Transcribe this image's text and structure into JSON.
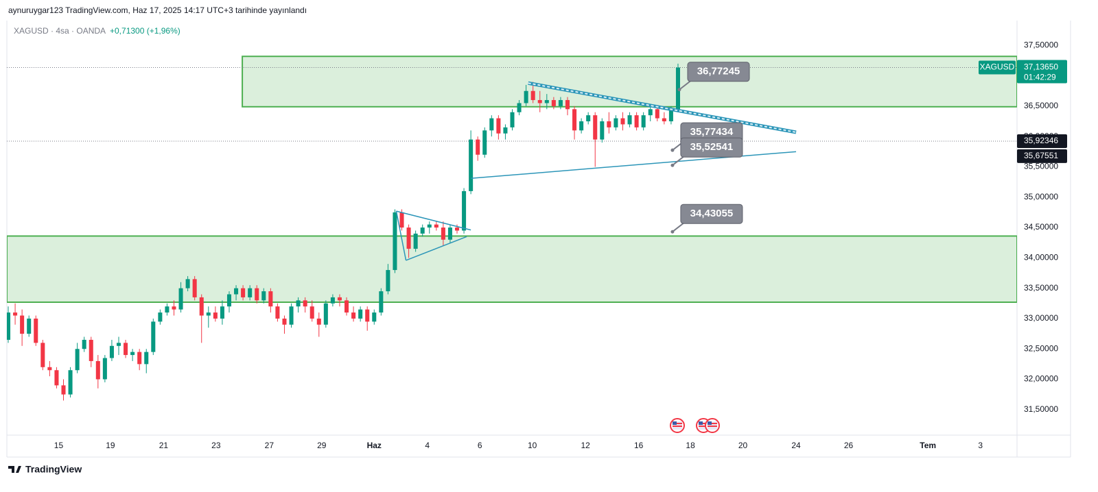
{
  "header": {
    "published": "aynuruygar123 TradingView.com, Haz 17, 2025 14:17 UTC+3 tarihinde yayınlandı",
    "symbol": "XAGUSD · 4sa · OANDA",
    "change": "+0,71300 (+1,96%)"
  },
  "footer": {
    "brand": "TradingView"
  },
  "chart_data": {
    "type": "candlestick",
    "up_color": "#089981",
    "down_color": "#f23645",
    "zone_color": "#4caf50",
    "line_color": "#2b95b8",
    "ylim": [
      31.08,
      37.91
    ],
    "xlim": [
      -0.2,
      146.1
    ],
    "yticks": [
      {
        "value": 31.5,
        "label": "31,50000"
      },
      {
        "value": 32,
        "label": "32,00000"
      },
      {
        "value": 32.5,
        "label": "32,50000"
      },
      {
        "value": 33,
        "label": "33,00000"
      },
      {
        "value": 33.5,
        "label": "33,50000"
      },
      {
        "value": 34,
        "label": "34,00000"
      },
      {
        "value": 34.5,
        "label": "34,50000"
      },
      {
        "value": 35,
        "label": "35,00000"
      },
      {
        "value": 35.5,
        "label": "35,50000"
      },
      {
        "value": 36,
        "label": "36,00000"
      },
      {
        "value": 36.5,
        "label": "36,50000"
      },
      {
        "value": 37,
        "label": "37,00000"
      },
      {
        "value": 37.5,
        "label": "37,50000"
      }
    ],
    "xticks": [
      {
        "value": 7.3,
        "label": "15"
      },
      {
        "value": 14.8,
        "label": "19"
      },
      {
        "value": 22.5,
        "label": "21"
      },
      {
        "value": 30.1,
        "label": "23"
      },
      {
        "value": 37.8,
        "label": "27"
      },
      {
        "value": 45.4,
        "label": "29"
      },
      {
        "value": 53.0,
        "label": "Haz"
      },
      {
        "value": 60.7,
        "label": "4"
      },
      {
        "value": 68.3,
        "label": "6"
      },
      {
        "value": 75.9,
        "label": "10"
      },
      {
        "value": 83.6,
        "label": "12"
      },
      {
        "value": 91.3,
        "label": "16"
      },
      {
        "value": 98.8,
        "label": "18"
      },
      {
        "value": 106.4,
        "label": "20"
      },
      {
        "value": 114.1,
        "label": "24"
      },
      {
        "value": 121.7,
        "label": "26"
      },
      {
        "value": 133.2,
        "label": "Tem"
      },
      {
        "value": 140.8,
        "label": "3"
      }
    ],
    "candles": [
      [
        32.65,
        33.2,
        32.6,
        33.1
      ],
      [
        33.1,
        33.25,
        32.9,
        33.05
      ],
      [
        33.05,
        33.15,
        32.55,
        32.75
      ],
      [
        32.75,
        33.05,
        32.7,
        33.0
      ],
      [
        33.0,
        33.05,
        32.55,
        32.6
      ],
      [
        32.6,
        32.65,
        32.15,
        32.2
      ],
      [
        32.2,
        32.3,
        32.05,
        32.15
      ],
      [
        32.15,
        32.2,
        31.85,
        31.9
      ],
      [
        31.9,
        32.0,
        31.65,
        31.75
      ],
      [
        31.75,
        32.2,
        31.7,
        32.15
      ],
      [
        32.15,
        32.6,
        32.1,
        32.5
      ],
      [
        32.5,
        32.7,
        32.45,
        32.65
      ],
      [
        32.65,
        32.7,
        32.2,
        32.3
      ],
      [
        32.3,
        32.4,
        31.85,
        32.0
      ],
      [
        32.0,
        32.4,
        31.95,
        32.35
      ],
      [
        32.35,
        32.65,
        32.3,
        32.55
      ],
      [
        32.55,
        32.7,
        32.4,
        32.6
      ],
      [
        32.6,
        32.65,
        32.35,
        32.4
      ],
      [
        32.4,
        32.5,
        32.3,
        32.45
      ],
      [
        32.45,
        32.5,
        32.15,
        32.25
      ],
      [
        32.25,
        32.5,
        32.1,
        32.45
      ],
      [
        32.45,
        33.0,
        32.4,
        32.95
      ],
      [
        32.95,
        33.15,
        32.9,
        33.1
      ],
      [
        33.1,
        33.25,
        33.05,
        33.2
      ],
      [
        33.2,
        33.3,
        33.05,
        33.15
      ],
      [
        33.15,
        33.6,
        33.1,
        33.5
      ],
      [
        33.5,
        33.7,
        33.45,
        33.65
      ],
      [
        33.65,
        33.7,
        33.3,
        33.35
      ],
      [
        33.35,
        33.4,
        32.6,
        33.05
      ],
      [
        33.05,
        33.2,
        32.85,
        33.1
      ],
      [
        33.1,
        33.2,
        32.95,
        33.0
      ],
      [
        33.0,
        33.3,
        32.9,
        33.2
      ],
      [
        33.2,
        33.45,
        33.1,
        33.4
      ],
      [
        33.4,
        33.55,
        33.3,
        33.5
      ],
      [
        33.5,
        33.55,
        33.3,
        33.35
      ],
      [
        33.35,
        33.55,
        33.3,
        33.5
      ],
      [
        33.5,
        33.55,
        33.25,
        33.3
      ],
      [
        33.3,
        33.5,
        33.25,
        33.45
      ],
      [
        33.45,
        33.5,
        33.1,
        33.2
      ],
      [
        33.2,
        33.25,
        32.95,
        33.0
      ],
      [
        33.0,
        33.05,
        32.75,
        32.9
      ],
      [
        32.9,
        33.25,
        32.85,
        33.2
      ],
      [
        33.2,
        33.35,
        33.1,
        33.3
      ],
      [
        33.3,
        33.35,
        33.1,
        33.2
      ],
      [
        33.2,
        33.3,
        32.95,
        33.0
      ],
      [
        33.0,
        33.1,
        32.7,
        32.9
      ],
      [
        32.9,
        33.3,
        32.85,
        33.25
      ],
      [
        33.25,
        33.4,
        33.2,
        33.35
      ],
      [
        33.35,
        33.4,
        33.2,
        33.3
      ],
      [
        33.3,
        33.35,
        33.05,
        33.1
      ],
      [
        33.1,
        33.2,
        32.95,
        33.0
      ],
      [
        33.0,
        33.2,
        32.95,
        33.15
      ],
      [
        33.15,
        33.2,
        32.8,
        32.95
      ],
      [
        32.95,
        33.15,
        32.9,
        33.1
      ],
      [
        33.1,
        33.5,
        33.05,
        33.45
      ],
      [
        33.45,
        33.9,
        33.4,
        33.8
      ],
      [
        33.8,
        34.8,
        33.75,
        34.75
      ],
      [
        34.75,
        34.8,
        34.45,
        34.5
      ],
      [
        34.5,
        34.55,
        34.0,
        34.15
      ],
      [
        34.15,
        34.45,
        34.1,
        34.4
      ],
      [
        34.4,
        34.55,
        34.35,
        34.5
      ],
      [
        34.5,
        34.6,
        34.4,
        34.55
      ],
      [
        34.55,
        34.6,
        34.45,
        34.5
      ],
      [
        34.5,
        34.6,
        34.2,
        34.3
      ],
      [
        34.3,
        34.55,
        34.25,
        34.5
      ],
      [
        34.5,
        34.55,
        34.4,
        34.45
      ],
      [
        34.45,
        35.15,
        34.4,
        35.1
      ],
      [
        35.1,
        36.1,
        35.05,
        35.95
      ],
      [
        35.95,
        36.0,
        35.6,
        35.7
      ],
      [
        35.7,
        36.15,
        35.65,
        36.1
      ],
      [
        36.1,
        36.35,
        36.0,
        36.3
      ],
      [
        36.3,
        36.35,
        35.95,
        36.05
      ],
      [
        36.05,
        36.2,
        35.95,
        36.15
      ],
      [
        36.15,
        36.45,
        36.1,
        36.4
      ],
      [
        36.4,
        36.6,
        36.35,
        36.55
      ],
      [
        36.55,
        36.85,
        36.5,
        36.75
      ],
      [
        36.75,
        36.9,
        36.55,
        36.6
      ],
      [
        36.6,
        36.75,
        36.4,
        36.55
      ],
      [
        36.55,
        36.7,
        36.45,
        36.6
      ],
      [
        36.6,
        36.65,
        36.45,
        36.5
      ],
      [
        36.5,
        36.65,
        36.45,
        36.6
      ],
      [
        36.6,
        36.65,
        36.35,
        36.45
      ],
      [
        36.45,
        36.5,
        35.95,
        36.1
      ],
      [
        36.1,
        36.3,
        36.05,
        36.25
      ],
      [
        36.25,
        36.4,
        36.2,
        36.35
      ],
      [
        36.35,
        36.4,
        35.5,
        35.95
      ],
      [
        35.95,
        36.3,
        35.9,
        36.25
      ],
      [
        36.25,
        36.4,
        36.05,
        36.15
      ],
      [
        36.15,
        36.35,
        36.1,
        36.3
      ],
      [
        36.3,
        36.4,
        36.1,
        36.2
      ],
      [
        36.2,
        36.4,
        36.15,
        36.35
      ],
      [
        36.35,
        36.4,
        36.1,
        36.15
      ],
      [
        36.15,
        36.4,
        36.1,
        36.35
      ],
      [
        36.35,
        36.5,
        36.25,
        36.45
      ],
      [
        36.45,
        36.5,
        36.25,
        36.3
      ],
      [
        36.3,
        36.4,
        36.2,
        36.25
      ],
      [
        36.25,
        36.5,
        36.2,
        36.45
      ],
      [
        36.45,
        37.2,
        36.4,
        37.1365
      ]
    ],
    "zones": [
      {
        "x": [
          33.9,
          146.1
        ],
        "y": [
          36.49,
          37.32
        ]
      },
      {
        "x": [
          -0.2,
          146.1
        ],
        "y": [
          33.27,
          34.36
        ]
      }
    ],
    "trend_lines": [
      {
        "x": [
          75.3,
          114.1
        ],
        "y": [
          36.88,
          36.07
        ],
        "double": true
      },
      {
        "x": [
          67.0,
          114.1
        ],
        "y": [
          35.31,
          35.75
        ]
      },
      {
        "x": [
          56.2,
          67.0
        ],
        "y": [
          34.77,
          34.46
        ]
      },
      {
        "x": [
          57.6,
          66.4
        ],
        "y": [
          33.96,
          34.35
        ]
      },
      {
        "x": [
          56.2,
          57.6
        ],
        "y": [
          34.77,
          33.96
        ]
      }
    ],
    "callouts": [
      {
        "x": 97.2,
        "value": 36.77245,
        "label": "36,77245"
      },
      {
        "x": 96.2,
        "value": 35.77434,
        "label": "35,77434"
      },
      {
        "x": 96.2,
        "value": 35.52541,
        "label": "35,52541"
      },
      {
        "x": 96.2,
        "value": 34.43055,
        "label": "34,43055"
      }
    ],
    "price_tags": [
      {
        "value": 37.1365,
        "label": "37,13650",
        "name": "XAGUSD",
        "time": "01:42:29",
        "color": "#089981",
        "dotted": true
      },
      {
        "value": 35.92346,
        "label": "35,92346",
        "color": "#131722",
        "dotted": true
      },
      {
        "value": 35.67551,
        "label": "35,67551",
        "color": "#131722"
      }
    ]
  }
}
